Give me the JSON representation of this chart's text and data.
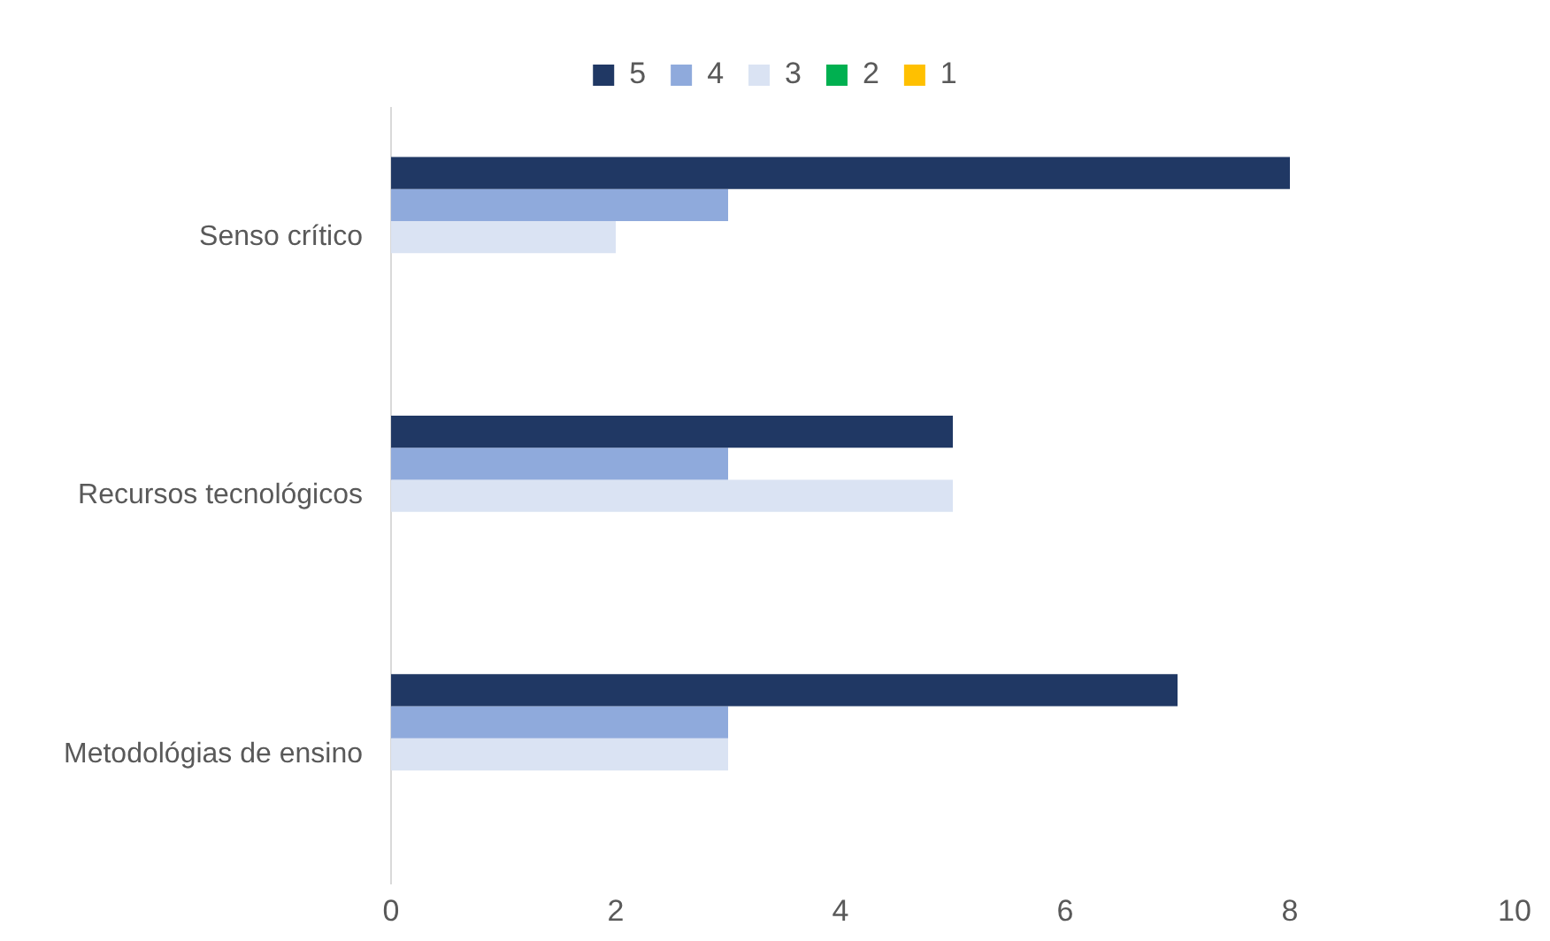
{
  "chart_data": {
    "type": "bar",
    "orientation": "horizontal",
    "categories": [
      "Senso crítico",
      "Recursos tecnológicos",
      "Metodológias de ensino"
    ],
    "series": [
      {
        "name": "5",
        "color": "#203864",
        "values": [
          8,
          5,
          7
        ]
      },
      {
        "name": "4",
        "color": "#8faadc",
        "values": [
          3,
          3,
          3
        ]
      },
      {
        "name": "3",
        "color": "#dae3f3",
        "values": [
          2,
          5,
          3
        ]
      },
      {
        "name": "2",
        "color": "#00b050",
        "values": [
          0,
          0,
          0
        ]
      },
      {
        "name": "1",
        "color": "#ffc000",
        "values": [
          0,
          0,
          0
        ]
      }
    ],
    "xlim": [
      0,
      10
    ],
    "xticks": [
      0,
      2,
      4,
      6,
      8,
      10
    ],
    "grid": false,
    "legend": "top"
  }
}
